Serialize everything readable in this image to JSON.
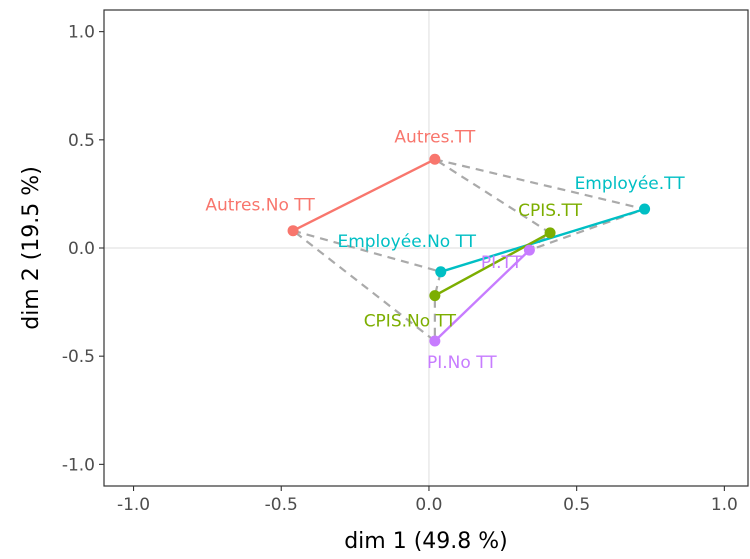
{
  "chart_data": {
    "type": "scatter",
    "xlabel": "dim 1 (49.8 %)",
    "ylabel": "dim 2 (19.5 %)",
    "xlim": [
      -1.1,
      1.08
    ],
    "ylim": [
      -1.1,
      1.1
    ],
    "x_ticks": [
      -1.0,
      -0.5,
      0.0,
      0.5,
      1.0
    ],
    "y_ticks": [
      -1.0,
      -0.5,
      0.0,
      0.5,
      1.0
    ],
    "x_tick_labels": [
      "-1.0",
      "-0.5",
      "0.0",
      "0.5",
      "1.0"
    ],
    "y_tick_labels": [
      "-1.0",
      "-0.5",
      "0.0",
      "0.5",
      "1.0"
    ],
    "grid": false,
    "reference_lines": {
      "x": 0,
      "y": 0
    },
    "points": [
      {
        "label": "Autres.TT",
        "x": 0.02,
        "y": 0.41,
        "color": "#F8766D",
        "group": "Autres"
      },
      {
        "label": "Autres.No TT",
        "x": -0.46,
        "y": 0.08,
        "color": "#F8766D",
        "group": "Autres"
      },
      {
        "label": "Employée.TT",
        "x": 0.73,
        "y": 0.18,
        "color": "#00BFC4",
        "group": "Employée"
      },
      {
        "label": "Employée.No TT",
        "x": 0.04,
        "y": -0.11,
        "color": "#00BFC4",
        "group": "Employée"
      },
      {
        "label": "CPIS.TT",
        "x": 0.41,
        "y": 0.07,
        "color": "#7CAE00",
        "group": "CPIS"
      },
      {
        "label": "CPIS.No TT",
        "x": 0.02,
        "y": -0.22,
        "color": "#7CAE00",
        "group": "CPIS"
      },
      {
        "label": "PI.TT",
        "x": 0.34,
        "y": -0.01,
        "color": "#C77CFF",
        "group": "PI"
      },
      {
        "label": "PI.No TT",
        "x": 0.02,
        "y": -0.43,
        "color": "#C77CFF",
        "group": "PI"
      }
    ],
    "segments": [
      {
        "from": "Autres.No TT",
        "to": "Autres.TT",
        "color": "#F8766D"
      },
      {
        "from": "Employée.No TT",
        "to": "Employée.TT",
        "color": "#00BFC4"
      },
      {
        "from": "CPIS.No TT",
        "to": "CPIS.TT",
        "color": "#7CAE00"
      },
      {
        "from": "PI.No TT",
        "to": "PI.TT",
        "color": "#C77CFF"
      }
    ],
    "dashed_polygons": [
      {
        "points": [
          "Autres.TT",
          "Employée.TT",
          "PI.TT",
          "CPIS.TT"
        ],
        "color": "#aaaaaa"
      },
      {
        "points": [
          "Autres.No TT",
          "Employée.No TT",
          "CPIS.No TT",
          "PI.No TT"
        ],
        "color": "#aaaaaa"
      }
    ]
  }
}
